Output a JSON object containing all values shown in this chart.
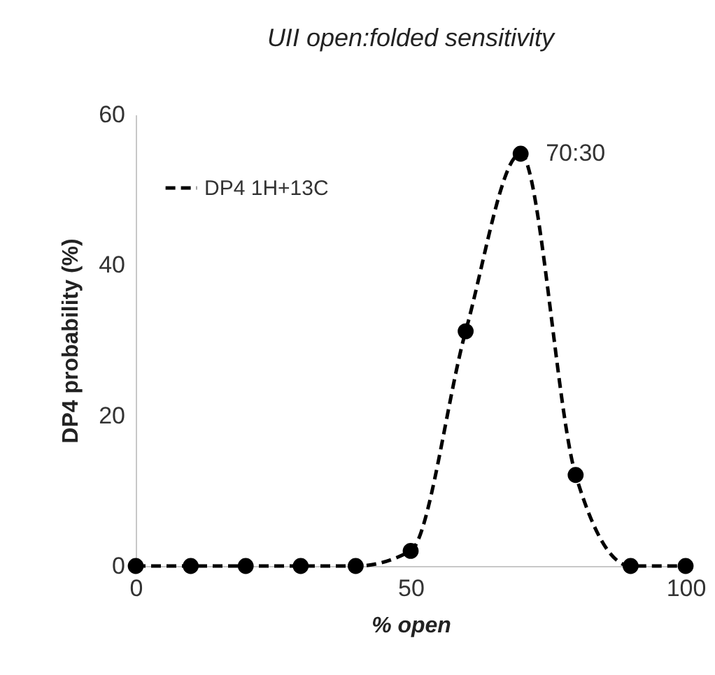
{
  "chart_data": {
    "type": "line",
    "title": "UII open:folded sensitivity",
    "xlabel": "% open",
    "ylabel": "DP4 probability (%)",
    "x": [
      0,
      10,
      20,
      30,
      40,
      50,
      60,
      70,
      80,
      90,
      100
    ],
    "series": [
      {
        "name": "DP4 1H+13C",
        "color": "#000000",
        "values": [
          0,
          0,
          0,
          0,
          0,
          2,
          31.2,
          54.8,
          12.1,
          0,
          0
        ]
      }
    ],
    "xlim": [
      0,
      100
    ],
    "xticks": [
      0,
      50,
      100
    ],
    "ylim": [
      0,
      60
    ],
    "yticks": [
      0,
      20,
      40,
      60
    ],
    "annotations": [
      {
        "text": "70:30",
        "x": 70,
        "y": 54.8
      }
    ],
    "legend": "top left",
    "grid": false,
    "marker": "circle",
    "line_style": "dashed"
  }
}
